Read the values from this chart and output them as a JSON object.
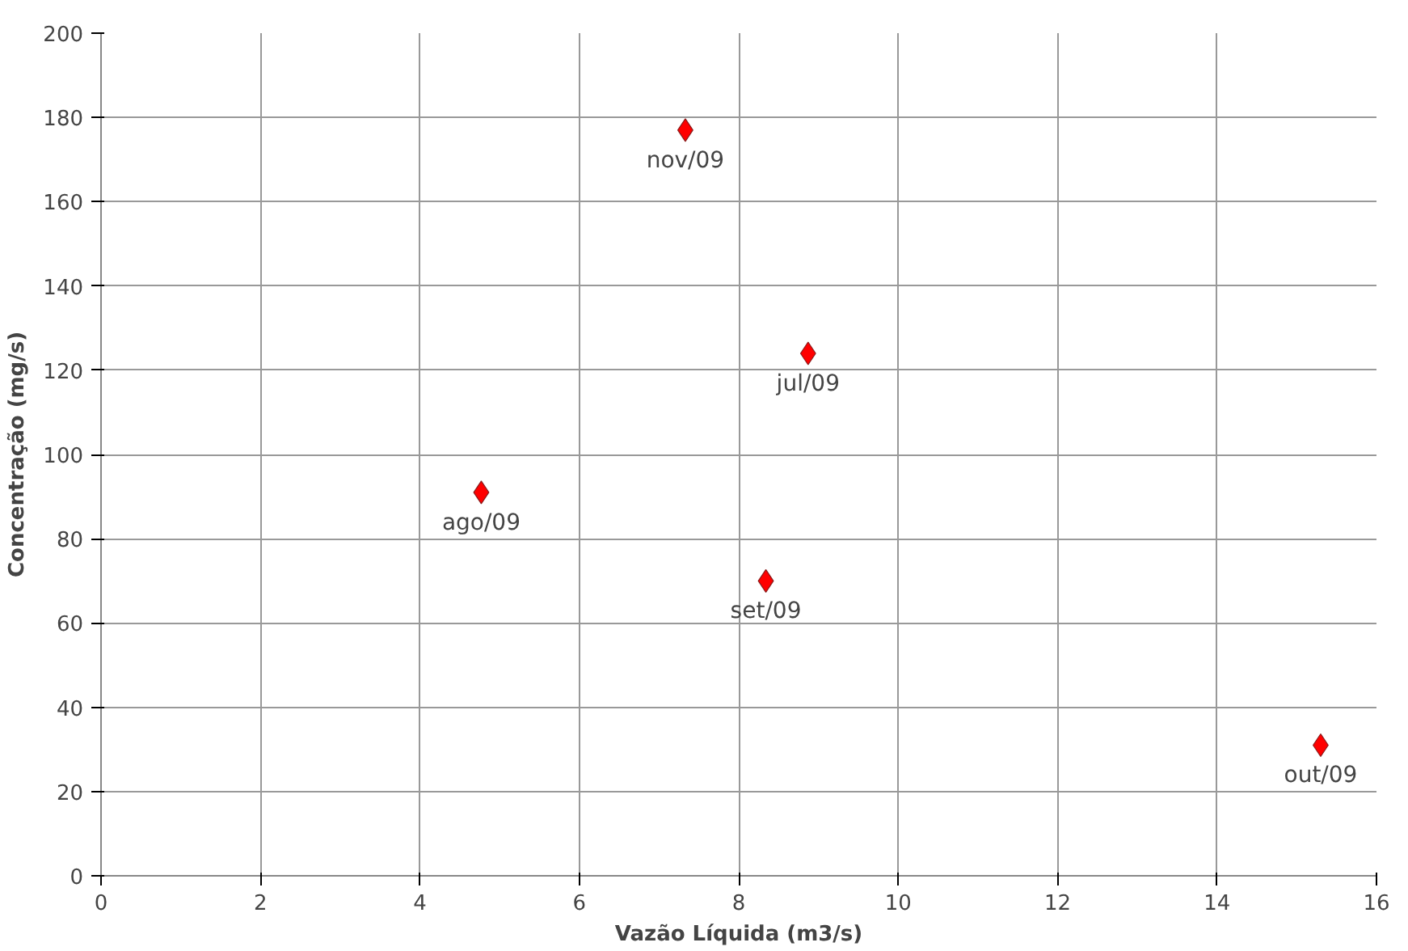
{
  "chart_data": {
    "type": "scatter",
    "xlabel": "Vazão Líquida (m3/s)",
    "ylabel": "Concentração (mg/s)",
    "x": [
      8.87,
      4.77,
      8.34,
      15.3,
      7.33
    ],
    "series": [
      {
        "color": "#ff0000",
        "values": [
          124,
          91,
          70,
          31,
          177
        ]
      }
    ],
    "xlim": [
      0,
      16
    ],
    "xticks": [
      0,
      2,
      4,
      6,
      8,
      10,
      12,
      14,
      16
    ],
    "ylim": [
      0,
      200
    ],
    "yticks": [
      0,
      20,
      40,
      60,
      80,
      100,
      120,
      140,
      160,
      180,
      200
    ],
    "grid": true,
    "marker": "diamond",
    "annotations": [
      {
        "text": "jul/09",
        "x": 8.87,
        "y": 124
      },
      {
        "text": "ago/09",
        "x": 4.77,
        "y": 91
      },
      {
        "text": "set/09",
        "x": 8.34,
        "y": 70
      },
      {
        "text": "out/09",
        "x": 15.3,
        "y": 31
      },
      {
        "text": "nov/09",
        "x": 7.33,
        "y": 177
      }
    ]
  }
}
